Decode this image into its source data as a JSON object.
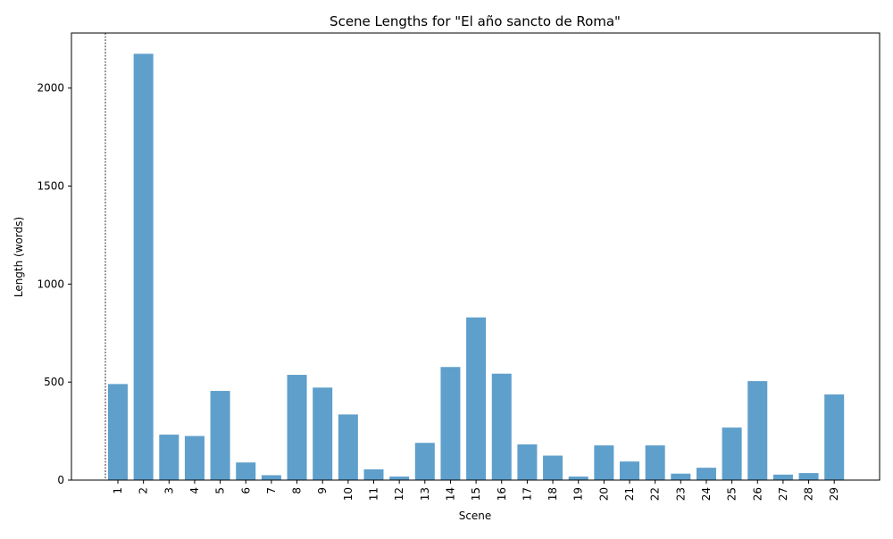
{
  "chart_data": {
    "type": "bar",
    "title": "Scene Lengths for \"El año sancto de Roma\"",
    "xlabel": "Scene",
    "ylabel": "Length (words)",
    "categories": [
      "1",
      "2",
      "3",
      "4",
      "5",
      "6",
      "7",
      "8",
      "9",
      "10",
      "11",
      "12",
      "13",
      "14",
      "15",
      "16",
      "17",
      "18",
      "19",
      "20",
      "21",
      "22",
      "23",
      "24",
      "25",
      "26",
      "27",
      "28",
      "29"
    ],
    "values": [
      490,
      2175,
      232,
      225,
      455,
      90,
      25,
      537,
      472,
      335,
      55,
      18,
      190,
      577,
      830,
      543,
      182,
      125,
      18,
      177,
      95,
      177,
      33,
      63,
      268,
      505,
      28,
      36,
      437
    ],
    "ylim": [
      0,
      2281
    ],
    "yticks": [
      0,
      500,
      1000,
      1500,
      2000
    ],
    "bar_color": "#5f9fcb",
    "vline_at": "before-first-category",
    "grid": false
  }
}
